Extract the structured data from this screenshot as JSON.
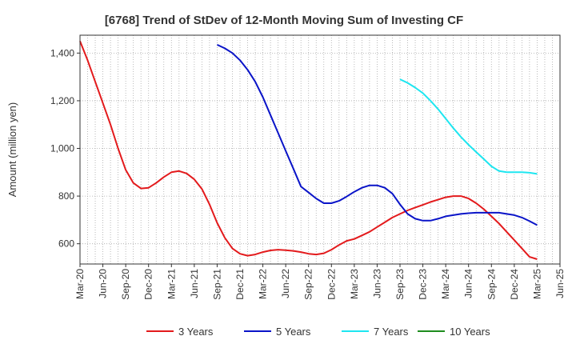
{
  "chart_data": {
    "type": "line",
    "title": "[6768]  Trend of StDev of 12-Month Moving Sum of Investing CF",
    "xlabel": "",
    "ylabel": "Amount (million yen)",
    "ylim": [
      515,
      1475
    ],
    "yticks": [
      600,
      800,
      1000,
      1200,
      1400
    ],
    "ytick_labels": [
      "600",
      "800",
      "1,000",
      "1,200",
      "1,400"
    ],
    "xlim": [
      "2020-03",
      "2025-06"
    ],
    "xtick_labels": [
      "Mar-20",
      "Jun-20",
      "Sep-20",
      "Dec-20",
      "Mar-21",
      "Jun-21",
      "Sep-21",
      "Dec-21",
      "Mar-22",
      "Jun-22",
      "Sep-22",
      "Dec-22",
      "Mar-23",
      "Jun-23",
      "Sep-23",
      "Dec-23",
      "Mar-24",
      "Jun-24",
      "Sep-24",
      "Dec-24",
      "Mar-25",
      "Jun-25"
    ],
    "grid": true,
    "legend_position": "bottom",
    "series": [
      {
        "name": "3 Years",
        "color": "#e31a1c",
        "x": [
          "2020-03",
          "2020-04",
          "2020-05",
          "2020-06",
          "2020-07",
          "2020-08",
          "2020-09",
          "2020-10",
          "2020-11",
          "2020-12",
          "2021-01",
          "2021-02",
          "2021-03",
          "2021-04",
          "2021-05",
          "2021-06",
          "2021-07",
          "2021-08",
          "2021-09",
          "2021-10",
          "2021-11",
          "2021-12",
          "2022-01",
          "2022-02",
          "2022-03",
          "2022-04",
          "2022-05",
          "2022-06",
          "2022-07",
          "2022-08",
          "2022-09",
          "2022-10",
          "2022-11",
          "2022-12",
          "2023-01",
          "2023-02",
          "2023-03",
          "2023-04",
          "2023-05",
          "2023-06",
          "2023-07",
          "2023-08",
          "2023-09",
          "2023-10",
          "2023-11",
          "2023-12",
          "2024-01",
          "2024-02",
          "2024-03",
          "2024-04",
          "2024-05",
          "2024-06",
          "2024-07",
          "2024-08",
          "2024-09",
          "2024-10",
          "2024-11",
          "2024-12",
          "2025-01",
          "2025-02",
          "2025-03"
        ],
        "values": [
          1450,
          1370,
          1280,
          1190,
          1100,
          1000,
          910,
          855,
          832,
          835,
          855,
          880,
          900,
          905,
          895,
          870,
          830,
          765,
          688,
          625,
          580,
          558,
          550,
          555,
          565,
          572,
          575,
          573,
          570,
          565,
          558,
          555,
          560,
          575,
          595,
          612,
          620,
          635,
          650,
          670,
          690,
          710,
          725,
          740,
          752,
          763,
          775,
          785,
          795,
          800,
          800,
          790,
          770,
          745,
          715,
          685,
          650,
          615,
          580,
          545,
          535
        ]
      },
      {
        "name": "5 Years",
        "color": "#0a14c8",
        "x": [
          "2021-09",
          "2021-10",
          "2021-11",
          "2021-12",
          "2022-01",
          "2022-02",
          "2022-03",
          "2022-04",
          "2022-05",
          "2022-06",
          "2022-07",
          "2022-08",
          "2022-09",
          "2022-10",
          "2022-11",
          "2022-12",
          "2023-01",
          "2023-02",
          "2023-03",
          "2023-04",
          "2023-05",
          "2023-06",
          "2023-07",
          "2023-08",
          "2023-09",
          "2023-10",
          "2023-11",
          "2023-12",
          "2024-01",
          "2024-02",
          "2024-03",
          "2024-04",
          "2024-05",
          "2024-06",
          "2024-07",
          "2024-08",
          "2024-09",
          "2024-10",
          "2024-11",
          "2024-12",
          "2025-01",
          "2025-02",
          "2025-03"
        ],
        "values": [
          1435,
          1420,
          1400,
          1370,
          1330,
          1280,
          1215,
          1140,
          1065,
          990,
          915,
          840,
          815,
          790,
          770,
          770,
          780,
          798,
          818,
          835,
          845,
          845,
          835,
          810,
          765,
          725,
          705,
          697,
          697,
          705,
          715,
          720,
          725,
          728,
          730,
          730,
          730,
          730,
          725,
          720,
          710,
          695,
          678
        ]
      },
      {
        "name": "7 Years",
        "color": "#1ee6f0",
        "x": [
          "2023-09",
          "2023-10",
          "2023-11",
          "2023-12",
          "2024-01",
          "2024-02",
          "2024-03",
          "2024-04",
          "2024-05",
          "2024-06",
          "2024-07",
          "2024-08",
          "2024-09",
          "2024-10",
          "2024-11",
          "2024-12",
          "2025-01",
          "2025-02",
          "2025-03"
        ],
        "values": [
          1290,
          1275,
          1255,
          1232,
          1200,
          1165,
          1125,
          1085,
          1048,
          1015,
          985,
          955,
          925,
          905,
          900,
          900,
          900,
          898,
          893
        ]
      },
      {
        "name": "10 Years",
        "color": "#1e8c1e",
        "x": [],
        "values": []
      }
    ]
  }
}
